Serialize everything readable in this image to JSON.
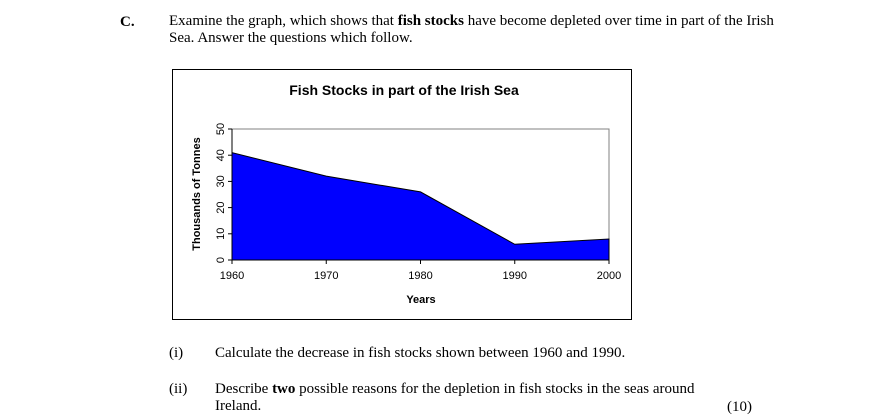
{
  "question": {
    "label": "C.",
    "intro_pre": "Examine the graph, which shows that ",
    "intro_bold": "fish stocks",
    "intro_post": " have become depleted over time in part of the Irish Sea.  Answer the questions which follow."
  },
  "chart_data": {
    "type": "area",
    "title": "Fish Stocks in part of the Irish Sea",
    "xlabel": "Years",
    "ylabel": "Thousands of Tonnes",
    "x": [
      1960,
      1970,
      1980,
      1990,
      2000
    ],
    "x_ticks": [
      "1960",
      "1970",
      "1980",
      "1990",
      "2000"
    ],
    "y_ticks": [
      "0",
      "10",
      "20",
      "30",
      "40",
      "50"
    ],
    "ylim": [
      0,
      50
    ],
    "series": [
      {
        "values": [
          41,
          32,
          26,
          6,
          8
        ],
        "color": "#0000ff"
      }
    ],
    "grid": false
  },
  "sub_questions": [
    {
      "num": "(i)",
      "pre": "Calculate the decrease in fish stocks shown between 1960 and 1990.",
      "bold": "",
      "post": ""
    },
    {
      "num": "(ii)",
      "pre": "Describe ",
      "bold": "two",
      "post": " possible reasons for the depletion in fish stocks in the seas around Ireland."
    }
  ],
  "marks": "(10)"
}
